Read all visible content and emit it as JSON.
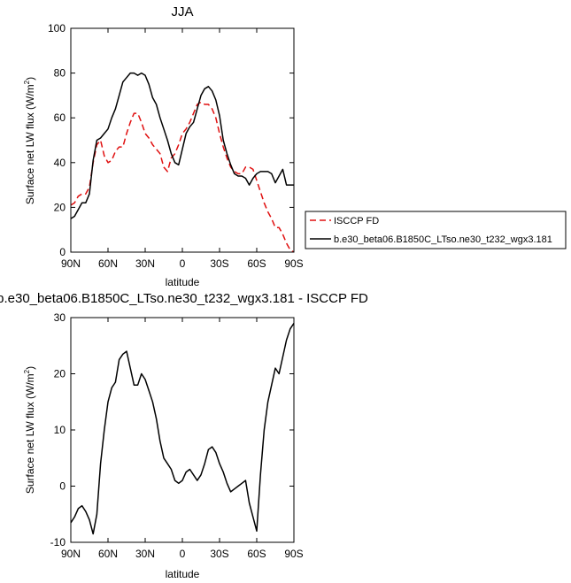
{
  "chart_data": [
    {
      "type": "line",
      "title": "JJA",
      "xlabel": "latitude",
      "ylabel": "Surface net LW flux (W/m",
      "ylabel_sup": "2",
      "ylabel_close": ")",
      "xlim": [
        90,
        -90
      ],
      "ylim": [
        0,
        100
      ],
      "xtick_values": [
        90,
        60,
        30,
        0,
        -30,
        -60,
        -90
      ],
      "xtick_labels": [
        "90N",
        "60N",
        "30N",
        "0",
        "30S",
        "60S",
        "90S"
      ],
      "ytick_values": [
        0,
        20,
        40,
        60,
        80,
        100
      ],
      "ytick_labels": [
        "0",
        "20",
        "40",
        "60",
        "80",
        "100"
      ],
      "legend": "right",
      "series": [
        {
          "name": "ISCCP FD",
          "color": "#e01010",
          "dash": "dashed",
          "x": [
            90,
            87,
            84,
            81,
            78,
            75,
            72,
            69,
            66,
            63,
            60,
            57,
            54,
            51,
            48,
            45,
            42,
            39,
            36,
            33,
            30,
            27,
            24,
            21,
            18,
            15,
            12,
            9,
            6,
            3,
            0,
            -3,
            -6,
            -9,
            -12,
            -15,
            -18,
            -21,
            -24,
            -27,
            -30,
            -33,
            -36,
            -39,
            -42,
            -45,
            -48,
            -51,
            -54,
            -57,
            -60,
            -63,
            -66,
            -69,
            -72,
            -75,
            -78,
            -81,
            -84,
            -87,
            -90
          ],
          "y": [
            21,
            22,
            25,
            26,
            26,
            29,
            40,
            48,
            50,
            43,
            40,
            41,
            45,
            47,
            47,
            53,
            58,
            62,
            62,
            58,
            53,
            51,
            48,
            46,
            44,
            38,
            36,
            42,
            44,
            48,
            53,
            55,
            58,
            62,
            66,
            67,
            66,
            66,
            64,
            60,
            53,
            47,
            42,
            38,
            36,
            35,
            35,
            38,
            38,
            37,
            32,
            27,
            22,
            18,
            15,
            11,
            11,
            8,
            4,
            1,
            0
          ]
        },
        {
          "name": "b.e30_beta06.B1850C_LTso.ne30_t232_wgx3.181",
          "color": "#000000",
          "dash": "solid",
          "x": [
            90,
            87,
            84,
            81,
            78,
            75,
            72,
            69,
            66,
            63,
            60,
            57,
            54,
            51,
            48,
            45,
            42,
            39,
            36,
            33,
            30,
            27,
            24,
            21,
            18,
            15,
            12,
            9,
            6,
            3,
            0,
            -3,
            -6,
            -9,
            -12,
            -15,
            -18,
            -21,
            -24,
            -27,
            -30,
            -33,
            -36,
            -39,
            -42,
            -45,
            -48,
            -51,
            -54,
            -57,
            -60,
            -63,
            -66,
            -69,
            -72,
            -75,
            -78,
            -81,
            -84,
            -87,
            -90
          ],
          "y": [
            15,
            16,
            19,
            22,
            22,
            26,
            41,
            50,
            51,
            53,
            55,
            60,
            64,
            70,
            76,
            78,
            80,
            80,
            79,
            80,
            79,
            75,
            69,
            66,
            60,
            55,
            50,
            44,
            40,
            39,
            46,
            53,
            56,
            58,
            64,
            70,
            73,
            74,
            72,
            68,
            61,
            50,
            44,
            39,
            35,
            34,
            34,
            33,
            30,
            33,
            35,
            36,
            36,
            36,
            35,
            31,
            34,
            37,
            30,
            30,
            30
          ]
        }
      ]
    },
    {
      "type": "line",
      "title": "b.e30_beta06.B1850C_LTso.ne30_t232_wgx3.181 - ISCCP FD",
      "xlabel": "latitude",
      "ylabel": "Surface net LW flux (W/m",
      "ylabel_sup": "2",
      "ylabel_close": ")",
      "xlim": [
        90,
        -90
      ],
      "ylim": [
        -10,
        30
      ],
      "xtick_values": [
        90,
        60,
        30,
        0,
        -30,
        -60,
        -90
      ],
      "xtick_labels": [
        "90N",
        "60N",
        "30N",
        "0",
        "30S",
        "60S",
        "90S"
      ],
      "ytick_values": [
        -10,
        0,
        10,
        20,
        30
      ],
      "ytick_labels": [
        "-10",
        "0",
        "10",
        "20",
        "30"
      ],
      "series": [
        {
          "color": "#000000",
          "dash": "solid",
          "x": [
            90,
            87,
            84,
            81,
            78,
            75,
            72,
            69,
            66,
            63,
            60,
            57,
            54,
            51,
            48,
            45,
            42,
            39,
            36,
            33,
            30,
            27,
            24,
            21,
            18,
            15,
            12,
            9,
            6,
            3,
            0,
            -3,
            -6,
            -9,
            -12,
            -15,
            -18,
            -21,
            -24,
            -27,
            -30,
            -33,
            -36,
            -39,
            -42,
            -45,
            -48,
            -51,
            -54,
            -57,
            -60,
            -63,
            -66,
            -69,
            -72,
            -75,
            -78,
            -81,
            -84,
            -87,
            -90
          ],
          "y": [
            -6.5,
            -5.5,
            -4,
            -3.5,
            -4.5,
            -6,
            -8.5,
            -5,
            4,
            10,
            15,
            17.5,
            18.5,
            22.5,
            23.5,
            24,
            21,
            18,
            18,
            20,
            19,
            17,
            15,
            12,
            8,
            5,
            4,
            3,
            1,
            0.5,
            1,
            2.5,
            3,
            2,
            1,
            2,
            4,
            6.5,
            7,
            6,
            4,
            2.5,
            0.5,
            -1,
            -0.5,
            0,
            0.5,
            1,
            -3,
            -5.5,
            -8,
            2,
            10,
            15,
            18,
            21,
            20,
            23,
            26,
            28,
            29
          ]
        }
      ]
    }
  ]
}
